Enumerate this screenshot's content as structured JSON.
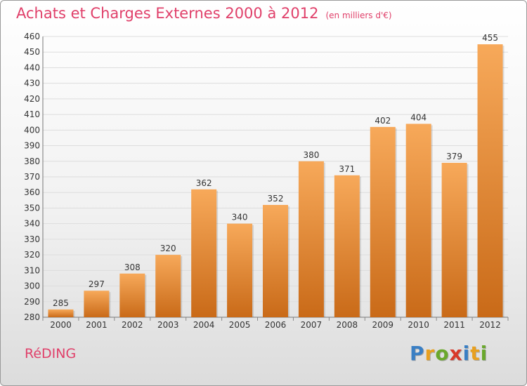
{
  "chart_data": {
    "type": "bar",
    "title": "Achats et Charges Externes 2000 à 2012",
    "subtitle": "(en milliers d'€)",
    "categories": [
      "2000",
      "2001",
      "2002",
      "2003",
      "2004",
      "2005",
      "2006",
      "2007",
      "2008",
      "2009",
      "2010",
      "2011",
      "2012"
    ],
    "values": [
      285,
      297,
      308,
      320,
      362,
      340,
      352,
      380,
      371,
      402,
      404,
      379,
      455
    ],
    "ylim": [
      280,
      460
    ],
    "yticks": [
      280,
      290,
      300,
      310,
      320,
      330,
      340,
      350,
      360,
      370,
      380,
      390,
      400,
      410,
      420,
      430,
      440,
      450,
      460
    ],
    "grid": true,
    "bar_colors": {
      "top": "#f7a95a",
      "bottom": "#c96a18"
    }
  },
  "footer": {
    "place": "RéDING",
    "logo_letters": [
      "P",
      "r",
      "o",
      "x",
      "i",
      "t",
      "i"
    ],
    "logo_colors": [
      "#3a7fc4",
      "#e8a020",
      "#6aa82c",
      "#d8392a",
      "#3a7fc4",
      "#e8a020",
      "#6aa82c"
    ]
  }
}
